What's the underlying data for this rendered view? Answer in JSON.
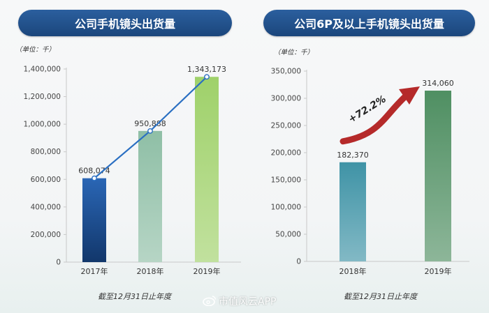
{
  "charts": [
    {
      "title": "公司手机镜头出货量",
      "unit_label": "（单位：千）",
      "footnote": "截至12月31日止年度",
      "chart_data": {
        "type": "bar",
        "categories": [
          "2017年",
          "2018年",
          "2019年"
        ],
        "values": [
          608074,
          950888,
          1343173
        ],
        "value_labels": [
          "608,074",
          "950,888",
          "1,343,173"
        ],
        "overlay_line": true,
        "ylim": [
          0,
          1400000
        ],
        "yticks": [
          0,
          200000,
          400000,
          600000,
          800000,
          1000000,
          1200000,
          1400000
        ],
        "ytick_labels": [
          "0",
          "200,000",
          "400,000",
          "600,000",
          "800,000",
          "1,000,000",
          "1,200,000",
          "1,400,000"
        ],
        "colors": [
          "#1d4f93",
          "#8fbfa6",
          "#9fd16a"
        ],
        "line_color": "#2a6fc2"
      }
    },
    {
      "title": "公司6P及以上手机镜头出货量",
      "unit_label": "（单位：千）",
      "footnote": "截至12月31日止年度",
      "growth_label": "+72.2%",
      "chart_data": {
        "type": "bar",
        "categories": [
          "2018年",
          "2019年"
        ],
        "values": [
          182370,
          314060
        ],
        "value_labels": [
          "182,370",
          "314,060"
        ],
        "ylim": [
          0,
          350000
        ],
        "yticks": [
          0,
          50000,
          100000,
          150000,
          200000,
          250000,
          300000,
          350000
        ],
        "ytick_labels": [
          "0",
          "50,000",
          "100,000",
          "150,000",
          "200,000",
          "250,000",
          "300,000",
          "350,000"
        ],
        "colors": [
          "#3f93a6",
          "#4f8f62"
        ],
        "arrow_color": "#b52a2a"
      }
    }
  ],
  "brand": {
    "text": "市值风云APP",
    "icon": "weibo-icon"
  }
}
